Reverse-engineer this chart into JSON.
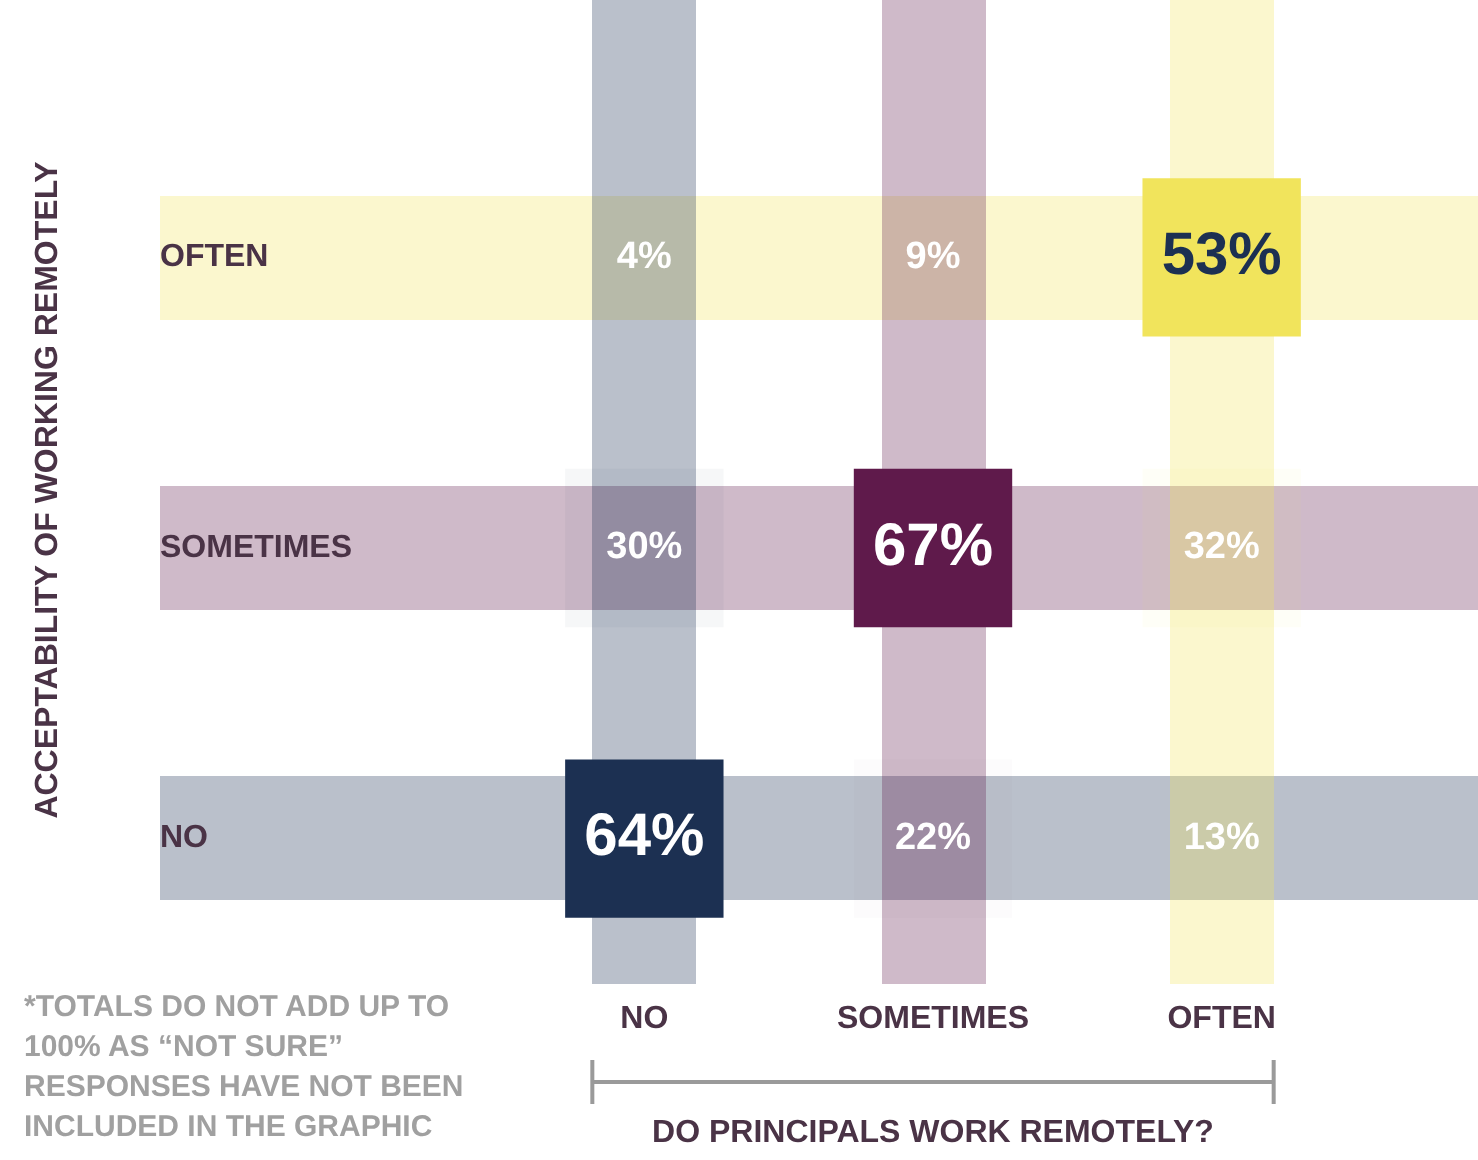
{
  "chart_data": {
    "type": "heatmap",
    "xlabel": "DO PRINCIPALS WORK REMOTELY?",
    "ylabel": "ACCEPTABILITY OF WORKING REMOTELY",
    "categories": [
      "NO",
      "SOMETIMES",
      "OFTEN"
    ],
    "y_categories": [
      "OFTEN",
      "SOMETIMES",
      "NO"
    ],
    "cells": [
      [
        4,
        9,
        53
      ],
      [
        30,
        67,
        32
      ],
      [
        64,
        22,
        13
      ]
    ],
    "cell_labels": [
      [
        "4%",
        "9%",
        "53%"
      ],
      [
        "30%",
        "67%",
        "32%"
      ],
      [
        "64%",
        "22%",
        "13%"
      ]
    ],
    "colors": [
      "#1c3052",
      "#5f1a4b",
      "#f1e45c"
    ],
    "annotations": [
      "*TOTALS DO NOT ADD UP TO 100% AS “NOT SURE” RESPONSES HAVE NOT BEEN INCLUDED IN THE GRAPHIC"
    ],
    "grid": false,
    "legend": false
  }
}
